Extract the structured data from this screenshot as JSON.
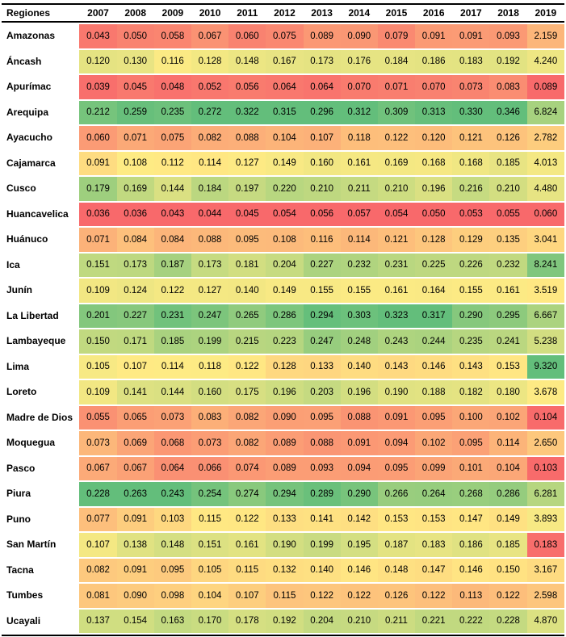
{
  "chart_data": {
    "type": "heatmap",
    "title": "",
    "row_header_label": "Regiones",
    "columns": [
      "2007",
      "2008",
      "2009",
      "2010",
      "2011",
      "2012",
      "2013",
      "2014",
      "2015",
      "2016",
      "2017",
      "2018",
      "2019"
    ],
    "rows": [
      {
        "region": "Amazonas",
        "values": [
          "0.043",
          "0.050",
          "0.058",
          "0.067",
          "0.060",
          "0.075",
          "0.089",
          "0.090",
          "0.079",
          "0.091",
          "0.091",
          "0.093",
          "2.159"
        ]
      },
      {
        "region": "Áncash",
        "values": [
          "0.120",
          "0.130",
          "0.116",
          "0.128",
          "0.148",
          "0.167",
          "0.173",
          "0.176",
          "0.184",
          "0.186",
          "0.183",
          "0.192",
          "4.240"
        ]
      },
      {
        "region": "Apurímac",
        "values": [
          "0.039",
          "0.045",
          "0.048",
          "0.052",
          "0.056",
          "0.064",
          "0.064",
          "0.070",
          "0.071",
          "0.070",
          "0.073",
          "0.083",
          "0.089"
        ]
      },
      {
        "region": "Arequipa",
        "values": [
          "0.212",
          "0.259",
          "0.235",
          "0.272",
          "0.322",
          "0.315",
          "0.296",
          "0.312",
          "0.309",
          "0.313",
          "0.330",
          "0.346",
          "6.824"
        ]
      },
      {
        "region": "Ayacucho",
        "values": [
          "0.060",
          "0.071",
          "0.075",
          "0.082",
          "0.088",
          "0.104",
          "0.107",
          "0.118",
          "0.122",
          "0.120",
          "0.121",
          "0.126",
          "2.782"
        ]
      },
      {
        "region": "Cajamarca",
        "values": [
          "0.091",
          "0.108",
          "0.112",
          "0.114",
          "0.127",
          "0.149",
          "0.160",
          "0.161",
          "0.169",
          "0.168",
          "0.168",
          "0.185",
          "4.013"
        ]
      },
      {
        "region": "Cusco",
        "values": [
          "0.179",
          "0.169",
          "0.144",
          "0.184",
          "0.197",
          "0.220",
          "0.210",
          "0.211",
          "0.210",
          "0.196",
          "0.216",
          "0.210",
          "4.480"
        ]
      },
      {
        "region": "Huancavelica",
        "values": [
          "0.036",
          "0.036",
          "0.043",
          "0.044",
          "0.045",
          "0.054",
          "0.056",
          "0.057",
          "0.054",
          "0.050",
          "0.053",
          "0.055",
          "0.060"
        ]
      },
      {
        "region": "Huánuco",
        "values": [
          "0.071",
          "0.084",
          "0.084",
          "0.088",
          "0.095",
          "0.108",
          "0.116",
          "0.114",
          "0.121",
          "0.128",
          "0.129",
          "0.135",
          "3.041"
        ]
      },
      {
        "region": "Ica",
        "values": [
          "0.151",
          "0.173",
          "0.187",
          "0.173",
          "0.181",
          "0.204",
          "0.227",
          "0.232",
          "0.231",
          "0.225",
          "0.226",
          "0.232",
          "8.241"
        ]
      },
      {
        "region": "Junín",
        "values": [
          "0.109",
          "0.124",
          "0.122",
          "0.127",
          "0.140",
          "0.149",
          "0.155",
          "0.155",
          "0.161",
          "0.164",
          "0.155",
          "0.161",
          "3.519"
        ]
      },
      {
        "region": "La Libertad",
        "values": [
          "0.201",
          "0.227",
          "0.231",
          "0.247",
          "0.265",
          "0.286",
          "0.294",
          "0.303",
          "0.323",
          "0.317",
          "0.290",
          "0.295",
          "6.667"
        ]
      },
      {
        "region": "Lambayeque",
        "values": [
          "0.150",
          "0.171",
          "0.185",
          "0.199",
          "0.215",
          "0.223",
          "0.247",
          "0.248",
          "0.243",
          "0.244",
          "0.235",
          "0.241",
          "5.238"
        ]
      },
      {
        "region": "Lima",
        "values": [
          "0.105",
          "0.107",
          "0.114",
          "0.118",
          "0.122",
          "0.128",
          "0.133",
          "0.140",
          "0.143",
          "0.146",
          "0.143",
          "0.153",
          "9.320"
        ]
      },
      {
        "region": "Loreto",
        "values": [
          "0.109",
          "0.141",
          "0.144",
          "0.160",
          "0.175",
          "0.196",
          "0.203",
          "0.196",
          "0.190",
          "0.188",
          "0.182",
          "0.180",
          "3.678"
        ]
      },
      {
        "region": "Madre de Dios",
        "values": [
          "0.055",
          "0.065",
          "0.073",
          "0.083",
          "0.082",
          "0.090",
          "0.095",
          "0.088",
          "0.091",
          "0.095",
          "0.100",
          "0.102",
          "0.104"
        ]
      },
      {
        "region": "Moquegua",
        "values": [
          "0.073",
          "0.069",
          "0.068",
          "0.073",
          "0.082",
          "0.089",
          "0.088",
          "0.091",
          "0.094",
          "0.102",
          "0.095",
          "0.114",
          "2.650"
        ]
      },
      {
        "region": "Pasco",
        "values": [
          "0.067",
          "0.067",
          "0.064",
          "0.066",
          "0.074",
          "0.089",
          "0.093",
          "0.094",
          "0.095",
          "0.099",
          "0.101",
          "0.104",
          "0.103"
        ]
      },
      {
        "region": "Piura",
        "values": [
          "0.228",
          "0.263",
          "0.243",
          "0.254",
          "0.274",
          "0.294",
          "0.289",
          "0.290",
          "0.266",
          "0.264",
          "0.268",
          "0.286",
          "6.281"
        ]
      },
      {
        "region": "Puno",
        "values": [
          "0.077",
          "0.091",
          "0.103",
          "0.115",
          "0.122",
          "0.133",
          "0.141",
          "0.142",
          "0.153",
          "0.153",
          "0.147",
          "0.149",
          "3.893"
        ]
      },
      {
        "region": "San Martín",
        "values": [
          "0.107",
          "0.138",
          "0.148",
          "0.151",
          "0.161",
          "0.190",
          "0.199",
          "0.195",
          "0.187",
          "0.183",
          "0.186",
          "0.185",
          "0.183"
        ]
      },
      {
        "region": "Tacna",
        "values": [
          "0.082",
          "0.091",
          "0.095",
          "0.105",
          "0.115",
          "0.132",
          "0.140",
          "0.146",
          "0.148",
          "0.147",
          "0.146",
          "0.150",
          "3.167"
        ]
      },
      {
        "region": "Tumbes",
        "values": [
          "0.081",
          "0.090",
          "0.098",
          "0.104",
          "0.107",
          "0.115",
          "0.122",
          "0.122",
          "0.126",
          "0.122",
          "0.113",
          "0.122",
          "2.598"
        ]
      },
      {
        "region": "Ucayali",
        "values": [
          "0.137",
          "0.154",
          "0.163",
          "0.170",
          "0.178",
          "0.192",
          "0.204",
          "0.210",
          "0.211",
          "0.221",
          "0.222",
          "0.228",
          "4.870"
        ]
      }
    ],
    "color_scale": {
      "low": "#F8696B",
      "mid": "#FFEB84",
      "high": "#63BE7B"
    },
    "normalization": "per-column-min-median-max",
    "legend_position": "none",
    "grid": "off"
  }
}
